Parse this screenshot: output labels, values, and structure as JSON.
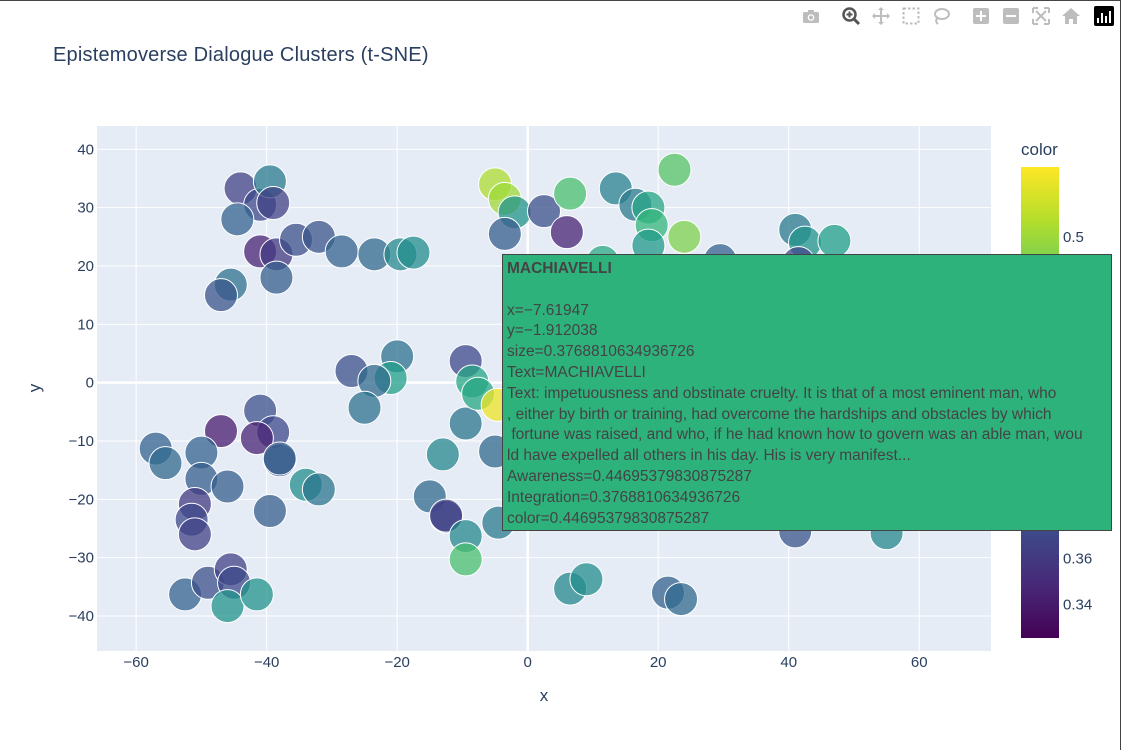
{
  "chart_data": {
    "type": "scatter",
    "title": "Epistemoverse Dialogue Clusters (t-SNE)",
    "xlabel": "x",
    "ylabel": "y",
    "xlim": [
      -66,
      71
    ],
    "ylim": [
      -46,
      44
    ],
    "xticks": [
      -60,
      -40,
      -20,
      0,
      20,
      40,
      60
    ],
    "yticks": [
      -40,
      -30,
      -20,
      -10,
      0,
      10,
      20,
      30,
      40
    ],
    "colorbar": {
      "title": "color",
      "colorscale": "viridis",
      "range": [
        0.325,
        0.53
      ],
      "ticks": [
        0.34,
        0.36,
        0.5
      ]
    },
    "points": [
      {
        "x": -44,
        "y": 33.3,
        "c": 0.365
      },
      {
        "x": -41,
        "y": 30.5,
        "c": 0.37
      },
      {
        "x": -39.5,
        "y": 34.5,
        "c": 0.41
      },
      {
        "x": -39,
        "y": 30.8,
        "c": 0.365
      },
      {
        "x": -44.5,
        "y": 28,
        "c": 0.39
      },
      {
        "x": -41,
        "y": 22.5,
        "c": 0.345
      },
      {
        "x": -38.5,
        "y": 22,
        "c": 0.36
      },
      {
        "x": -35.5,
        "y": 24.5,
        "c": 0.375
      },
      {
        "x": -32,
        "y": 25,
        "c": 0.38
      },
      {
        "x": -28.5,
        "y": 22.5,
        "c": 0.39
      },
      {
        "x": -23.5,
        "y": 22,
        "c": 0.395
      },
      {
        "x": -19.5,
        "y": 22,
        "c": 0.42
      },
      {
        "x": -17.5,
        "y": 22.3,
        "c": 0.425
      },
      {
        "x": -38.5,
        "y": 18,
        "c": 0.385
      },
      {
        "x": -45.5,
        "y": 16.8,
        "c": 0.4
      },
      {
        "x": -47,
        "y": 15,
        "c": 0.38
      },
      {
        "x": -27,
        "y": 2,
        "c": 0.375
      },
      {
        "x": -20,
        "y": 4.5,
        "c": 0.4
      },
      {
        "x": -21,
        "y": 0.8,
        "c": 0.44
      },
      {
        "x": -23.5,
        "y": 0.3,
        "c": 0.395
      },
      {
        "x": -25,
        "y": -4.3,
        "c": 0.4
      },
      {
        "x": -41,
        "y": -4.8,
        "c": 0.375
      },
      {
        "x": -39,
        "y": -8.5,
        "c": 0.37
      },
      {
        "x": -41.5,
        "y": -9.5,
        "c": 0.345
      },
      {
        "x": -47,
        "y": -8.3,
        "c": 0.34
      },
      {
        "x": -38,
        "y": -13.3,
        "c": 0.38
      },
      {
        "x": -38,
        "y": -13,
        "c": 0.385
      },
      {
        "x": -57,
        "y": -11.3,
        "c": 0.39
      },
      {
        "x": -55.5,
        "y": -13.8,
        "c": 0.395
      },
      {
        "x": -50,
        "y": -12,
        "c": 0.39
      },
      {
        "x": -50,
        "y": -16.5,
        "c": 0.385
      },
      {
        "x": -46,
        "y": -17.8,
        "c": 0.385
      },
      {
        "x": -51,
        "y": -20.8,
        "c": 0.36
      },
      {
        "x": -51.5,
        "y": -23.5,
        "c": 0.37
      },
      {
        "x": -51,
        "y": -26,
        "c": 0.365
      },
      {
        "x": -34,
        "y": -17.5,
        "c": 0.425
      },
      {
        "x": -32,
        "y": -18.3,
        "c": 0.405
      },
      {
        "x": -39.5,
        "y": -22,
        "c": 0.385
      },
      {
        "x": -52.5,
        "y": -36.3,
        "c": 0.39
      },
      {
        "x": -49,
        "y": -34.3,
        "c": 0.375
      },
      {
        "x": -45.5,
        "y": -32,
        "c": 0.365
      },
      {
        "x": -45,
        "y": -34.3,
        "c": 0.37
      },
      {
        "x": -46,
        "y": -38.3,
        "c": 0.43
      },
      {
        "x": -41.5,
        "y": -36.3,
        "c": 0.43
      },
      {
        "x": -15,
        "y": -19.5,
        "c": 0.395
      },
      {
        "x": -12.5,
        "y": -23,
        "c": 0.37
      },
      {
        "x": -12.5,
        "y": -22.8,
        "c": 0.365
      },
      {
        "x": -9.5,
        "y": -26.3,
        "c": 0.42
      },
      {
        "x": -9.5,
        "y": -30.3,
        "c": 0.47
      },
      {
        "x": -13,
        "y": -12.3,
        "c": 0.42
      },
      {
        "x": -9.5,
        "y": -7,
        "c": 0.405
      },
      {
        "x": -9.5,
        "y": 3.7,
        "c": 0.37
      },
      {
        "x": -8.5,
        "y": 0.2,
        "c": 0.445
      },
      {
        "x": -7.6,
        "y": -1.9,
        "c": 0.447
      },
      {
        "x": -4.6,
        "y": -3.8,
        "c": 0.525
      },
      {
        "x": -5,
        "y": -11.8,
        "c": 0.395
      },
      {
        "x": -4.5,
        "y": -24,
        "c": 0.41
      },
      {
        "x": -5,
        "y": 34,
        "c": 0.505
      },
      {
        "x": -3.5,
        "y": 31.5,
        "c": 0.5
      },
      {
        "x": -2,
        "y": 29.2,
        "c": 0.43
      },
      {
        "x": -3.5,
        "y": 25.5,
        "c": 0.385
      },
      {
        "x": 2.5,
        "y": 29.4,
        "c": 0.375
      },
      {
        "x": 6.5,
        "y": 32.4,
        "c": 0.47
      },
      {
        "x": 6,
        "y": 25.8,
        "c": 0.345
      },
      {
        "x": 13.5,
        "y": 33.3,
        "c": 0.415
      },
      {
        "x": 16.5,
        "y": 30.5,
        "c": 0.41
      },
      {
        "x": 18.5,
        "y": 30,
        "c": 0.445
      },
      {
        "x": 19,
        "y": 27,
        "c": 0.46
      },
      {
        "x": 18.5,
        "y": 23.5,
        "c": 0.435
      },
      {
        "x": 22.5,
        "y": 36.5,
        "c": 0.475
      },
      {
        "x": 24,
        "y": 25,
        "c": 0.49
      },
      {
        "x": 11.5,
        "y": 20.7,
        "c": 0.45
      },
      {
        "x": 29.5,
        "y": 21,
        "c": 0.39
      },
      {
        "x": 41,
        "y": 26.2,
        "c": 0.41
      },
      {
        "x": 42.5,
        "y": 24,
        "c": 0.43
      },
      {
        "x": 47,
        "y": 24.3,
        "c": 0.44
      },
      {
        "x": 41.5,
        "y": 20.5,
        "c": 0.37
      },
      {
        "x": 41,
        "y": -25.5,
        "c": 0.38
      },
      {
        "x": 55,
        "y": -25.8,
        "c": 0.42
      },
      {
        "x": 6.5,
        "y": -35.3,
        "c": 0.42
      },
      {
        "x": 9,
        "y": -33.7,
        "c": 0.425
      },
      {
        "x": 21.5,
        "y": -36,
        "c": 0.39
      },
      {
        "x": 23.5,
        "y": -37.1,
        "c": 0.395
      }
    ],
    "hover": {
      "name": "MACHIAVELLI",
      "lines": [
        "x=−7.61947",
        "y=−1.912038",
        "size=0.3768810634936726",
        "Text=MACHIAVELLI",
        "Text: impetuousness and obstinate cruelty. It is that of a most eminent man, who\n, either by birth or training, had overcome the hardships and obstacles by which\n fortune was raised, and who, if he had known how to govern was an able man, wou\nld have expelled all others in his day. His is very manifest...",
        "Awareness=0.44695379830875287",
        "Integration=0.3768810634936726",
        "color=0.44695379830875287"
      ]
    }
  },
  "modebar": {
    "icons": [
      "camera-icon",
      "zoom-icon",
      "pan-icon",
      "box-select-icon",
      "lasso-icon",
      "zoom-in-icon",
      "zoom-out-icon",
      "autoscale-icon",
      "home-icon",
      "plotly-logo-icon"
    ]
  }
}
